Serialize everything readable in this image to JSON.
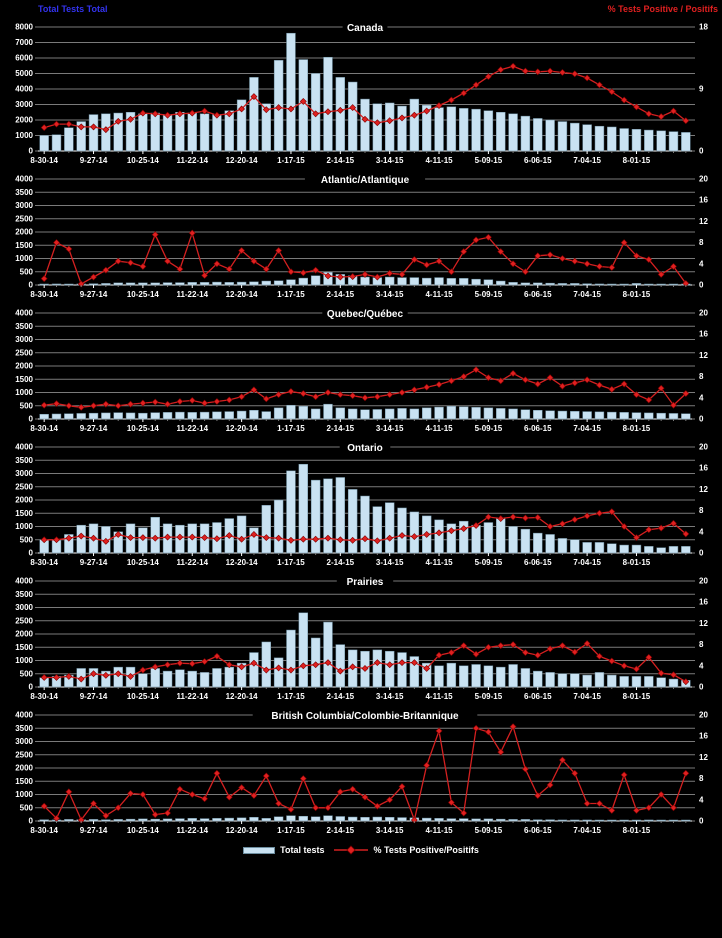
{
  "header": {
    "left_label": "Total Tests Total",
    "right_label": "% Tests Positive / Positifs"
  },
  "legend": {
    "bar_label": "Total tests",
    "line_label": "% Tests Positive/Positifs"
  },
  "colors": {
    "background": "#000000",
    "bar_fill": "#c9e2f2",
    "bar_stroke": "#6d8ea0",
    "line_color": "#d42020",
    "marker_fill": "#e02020",
    "marker_stroke": "#7a0000",
    "grid": "#7a7a7a",
    "axis_zero_line": "#ffffff",
    "left_header_color": "#3333ee",
    "right_header_color": "#e02020",
    "text": "#ffffff"
  },
  "chart_data": [
    {
      "type": "bar+line",
      "title": "Canada",
      "x_tick_labels": [
        "8-30-14",
        "9-27-14",
        "10-25-14",
        "11-22-14",
        "12-20-14",
        "1-17-15",
        "2-14-15",
        "3-14-15",
        "4-11-15",
        "5-09-15",
        "6-06-15",
        "7-04-15",
        "8-01-15"
      ],
      "weeks": 53,
      "left_axis": {
        "label": "Total tests",
        "min": 0,
        "max": 8000,
        "step": 1000
      },
      "right_axis": {
        "label": "% tests positive",
        "min": 0,
        "max": 18,
        "labels": [
          18,
          9,
          0
        ]
      },
      "bar_series": {
        "name": "Total tests",
        "axis": "left",
        "values": [
          1000,
          1050,
          1500,
          1900,
          2350,
          2400,
          2450,
          2500,
          2400,
          2450,
          2350,
          2500,
          2450,
          2400,
          2350,
          2600,
          3300,
          4750,
          3050,
          5850,
          7600,
          5900,
          5000,
          6050,
          4750,
          4450,
          3350,
          3050,
          3100,
          2900,
          3350,
          2950,
          2800,
          2850,
          2750,
          2700,
          2600,
          2500,
          2400,
          2250,
          2100,
          2000,
          1900,
          1800,
          1700,
          1600,
          1550,
          1450,
          1400,
          1350,
          1300,
          1250,
          1200
        ]
      },
      "line_series": {
        "name": "% Tests Positive/Positifs",
        "axis": "right",
        "values": [
          3.4,
          3.9,
          3.9,
          3.5,
          3.5,
          3.1,
          4.3,
          4.6,
          5.5,
          5.4,
          5.2,
          5.4,
          5.5,
          5.8,
          5.2,
          5.4,
          6.1,
          7.9,
          6.0,
          6.3,
          6.1,
          7.2,
          5.4,
          5.7,
          5.9,
          6.3,
          4.6,
          4.1,
          4.4,
          4.8,
          5.2,
          5.8,
          6.6,
          7.4,
          8.4,
          9.6,
          10.8,
          11.8,
          12.3,
          11.6,
          11.5,
          11.6,
          11.4,
          11.2,
          10.6,
          9.6,
          8.6,
          7.4,
          6.4,
          5.4,
          5.0,
          5.8,
          4.4
        ]
      }
    },
    {
      "type": "bar+line",
      "title": "Atlantic/Atlantique",
      "x_tick_labels": [
        "8-30-14",
        "9-27-14",
        "10-25-14",
        "11-22-14",
        "12-20-14",
        "1-17-15",
        "2-14-15",
        "3-14-15",
        "4-11-15",
        "5-09-15",
        "6-06-15",
        "7-04-15",
        "8-01-15"
      ],
      "weeks": 53,
      "left_axis": {
        "label": "Total tests",
        "min": 0,
        "max": 4000,
        "step": 500
      },
      "right_axis": {
        "label": "% tests positive",
        "min": 0,
        "max": 20,
        "labels": [
          20,
          16,
          12,
          8,
          4,
          0
        ]
      },
      "bar_series": {
        "name": "Total tests",
        "axis": "left",
        "values": [
          30,
          40,
          30,
          40,
          50,
          60,
          80,
          80,
          80,
          80,
          90,
          90,
          100,
          100,
          110,
          100,
          110,
          120,
          150,
          160,
          200,
          260,
          350,
          480,
          400,
          350,
          300,
          280,
          300,
          280,
          280,
          260,
          280,
          250,
          250,
          220,
          200,
          150,
          100,
          80,
          80,
          70,
          60,
          60,
          50,
          40,
          30,
          30,
          60,
          30,
          30,
          30,
          20
        ]
      },
      "line_series": {
        "name": "% Tests Positive/Positifs",
        "axis": "right",
        "values": [
          1.2,
          8.0,
          6.8,
          0.2,
          1.5,
          2.8,
          4.5,
          4.2,
          3.5,
          9.5,
          4.5,
          3.0,
          9.8,
          1.8,
          4.0,
          3.0,
          6.5,
          4.5,
          3.0,
          6.5,
          2.5,
          2.3,
          2.8,
          1.7,
          1.5,
          1.6,
          2.0,
          1.5,
          2.2,
          2.0,
          4.8,
          3.8,
          4.5,
          2.5,
          6.3,
          8.5,
          9.0,
          6.3,
          4.0,
          2.5,
          5.5,
          5.7,
          5.0,
          4.5,
          4.0,
          3.5,
          3.3,
          8.0,
          5.5,
          4.8,
          2.0,
          3.5,
          0.3
        ]
      }
    },
    {
      "type": "bar+line",
      "title": "Quebec/Québec",
      "x_tick_labels": [
        "8-30-14",
        "9-27-14",
        "10-25-14",
        "11-22-14",
        "12-20-14",
        "1-17-15",
        "2-14-15",
        "3-14-15",
        "4-11-15",
        "5-09-15",
        "6-06-15",
        "7-04-15",
        "8-01-15"
      ],
      "weeks": 53,
      "left_axis": {
        "label": "Total tests",
        "min": 0,
        "max": 4000,
        "step": 500
      },
      "right_axis": {
        "label": "% tests positive",
        "min": 0,
        "max": 20,
        "labels": [
          20,
          16,
          12,
          8,
          4,
          0
        ]
      },
      "bar_series": {
        "name": "Total tests",
        "axis": "left",
        "values": [
          180,
          190,
          200,
          210,
          220,
          230,
          240,
          230,
          220,
          240,
          250,
          260,
          250,
          260,
          270,
          280,
          300,
          330,
          280,
          420,
          520,
          480,
          380,
          560,
          420,
          380,
          350,
          360,
          380,
          400,
          380,
          420,
          450,
          480,
          460,
          440,
          420,
          400,
          380,
          350,
          330,
          310,
          300,
          290,
          280,
          270,
          260,
          250,
          240,
          230,
          220,
          210,
          200
        ]
      },
      "line_series": {
        "name": "% Tests Positive/Positifs",
        "axis": "right",
        "values": [
          2.6,
          2.9,
          2.5,
          2.2,
          2.5,
          2.8,
          2.5,
          2.8,
          3.0,
          3.2,
          2.8,
          3.3,
          3.5,
          3.0,
          3.3,
          3.6,
          4.2,
          5.5,
          3.8,
          4.6,
          5.2,
          4.8,
          4.2,
          5.0,
          4.6,
          4.4,
          4.0,
          4.2,
          4.6,
          5.0,
          5.5,
          6.0,
          6.5,
          7.2,
          8.0,
          9.3,
          7.8,
          7.2,
          8.6,
          7.4,
          6.6,
          7.8,
          6.2,
          6.8,
          7.4,
          6.4,
          5.6,
          6.6,
          4.6,
          3.6,
          5.8,
          2.6,
          4.8
        ]
      }
    },
    {
      "type": "bar+line",
      "title": "Ontario",
      "x_tick_labels": [
        "8-30-14",
        "9-27-14",
        "10-25-14",
        "11-22-14",
        "12-20-14",
        "1-17-15",
        "2-14-15",
        "3-14-15",
        "4-11-15",
        "5-09-15",
        "6-06-15",
        "7-04-15",
        "8-01-15"
      ],
      "weeks": 53,
      "left_axis": {
        "label": "Total tests",
        "min": 0,
        "max": 4000,
        "step": 500
      },
      "right_axis": {
        "label": "% tests positive",
        "min": 0,
        "max": 20,
        "labels": [
          20,
          16,
          12,
          8,
          4,
          0
        ]
      },
      "bar_series": {
        "name": "Total tests",
        "axis": "left",
        "values": [
          500,
          480,
          700,
          1050,
          1100,
          1000,
          800,
          1100,
          950,
          1350,
          1100,
          1050,
          1100,
          1100,
          1150,
          1300,
          1400,
          950,
          1800,
          2000,
          3100,
          3350,
          2750,
          2800,
          2850,
          2400,
          2150,
          1750,
          1900,
          1700,
          1550,
          1400,
          1250,
          1100,
          1200,
          1050,
          1150,
          1300,
          1000,
          900,
          750,
          700,
          550,
          500,
          400,
          400,
          350,
          300,
          300,
          250,
          200,
          250,
          250
        ]
      },
      "line_series": {
        "name": "% Tests Positive/Positifs",
        "axis": "right",
        "values": [
          2.5,
          2.5,
          2.8,
          3.2,
          2.8,
          2.2,
          3.5,
          2.9,
          2.9,
          2.8,
          3.0,
          3.0,
          3.0,
          2.9,
          2.7,
          3.3,
          2.6,
          3.5,
          2.9,
          2.8,
          2.4,
          2.6,
          2.6,
          2.8,
          2.5,
          2.4,
          2.7,
          2.3,
          2.8,
          3.3,
          3.1,
          3.5,
          3.8,
          4.2,
          4.6,
          5.2,
          6.8,
          6.5,
          6.8,
          6.6,
          6.7,
          5.0,
          5.5,
          6.3,
          7.0,
          7.5,
          7.8,
          5.0,
          2.9,
          4.4,
          4.7,
          5.6,
          3.6
        ]
      }
    },
    {
      "type": "bar+line",
      "title": "Prairies",
      "x_tick_labels": [
        "8-30-14",
        "9-27-14",
        "10-25-14",
        "11-22-14",
        "12-20-14",
        "1-17-15",
        "2-14-15",
        "3-14-15",
        "4-11-15",
        "5-09-15",
        "6-06-15",
        "7-04-15",
        "8-01-15"
      ],
      "weeks": 53,
      "left_axis": {
        "label": "Total tests",
        "min": 0,
        "max": 4000,
        "step": 500
      },
      "right_axis": {
        "label": "% tests positive",
        "min": 0,
        "max": 20,
        "labels": [
          20,
          16,
          12,
          8,
          4,
          0
        ]
      },
      "bar_series": {
        "name": "Total tests",
        "axis": "left",
        "values": [
          350,
          400,
          450,
          700,
          700,
          600,
          750,
          750,
          500,
          700,
          600,
          650,
          600,
          550,
          700,
          750,
          900,
          1300,
          1700,
          1100,
          2150,
          2800,
          1850,
          2450,
          1600,
          1400,
          1350,
          1400,
          1350,
          1300,
          1150,
          900,
          800,
          900,
          800,
          850,
          800,
          750,
          850,
          700,
          600,
          550,
          500,
          500,
          450,
          550,
          450,
          400,
          400,
          400,
          350,
          300,
          250
        ]
      },
      "line_series": {
        "name": "% Tests Positive/Positifs",
        "axis": "right",
        "values": [
          1.8,
          1.8,
          2.0,
          1.5,
          2.5,
          2.2,
          2.5,
          2.0,
          3.2,
          3.8,
          4.2,
          4.5,
          4.4,
          4.8,
          5.8,
          4.2,
          3.8,
          4.5,
          3.2,
          3.6,
          3.2,
          4.0,
          4.2,
          4.6,
          3.0,
          3.8,
          3.5,
          4.6,
          4.2,
          4.6,
          4.6,
          3.5,
          6.0,
          6.5,
          7.8,
          6.2,
          7.5,
          7.8,
          8.0,
          6.5,
          6.0,
          7.2,
          7.8,
          6.6,
          8.2,
          5.8,
          4.9,
          4.0,
          3.4,
          5.6,
          2.6,
          2.3,
          1.0
        ]
      }
    },
    {
      "type": "bar+line",
      "title": "British Columbia/Colombie-Britannique",
      "x_tick_labels": [
        "8-30-14",
        "9-27-14",
        "10-25-14",
        "11-22-14",
        "12-20-14",
        "1-17-15",
        "2-14-15",
        "3-14-15",
        "4-11-15",
        "5-09-15",
        "6-06-15",
        "7-04-15",
        "8-01-15"
      ],
      "weeks": 53,
      "left_axis": {
        "label": "Total tests",
        "min": 0,
        "max": 4000,
        "step": 500
      },
      "right_axis": {
        "label": "% tests positive",
        "min": 0,
        "max": 20,
        "labels": [
          20,
          16,
          12,
          8,
          4,
          0
        ]
      },
      "bar_series": {
        "name": "Total tests",
        "axis": "left",
        "values": [
          50,
          40,
          60,
          50,
          60,
          50,
          60,
          70,
          80,
          70,
          80,
          90,
          100,
          90,
          100,
          110,
          120,
          140,
          100,
          160,
          200,
          180,
          160,
          200,
          170,
          150,
          140,
          150,
          140,
          130,
          120,
          110,
          100,
          90,
          90,
          80,
          80,
          70,
          60,
          60,
          50,
          50,
          40,
          40,
          40,
          30,
          30,
          30,
          30,
          40,
          30,
          30,
          30
        ]
      },
      "line_series": {
        "name": "% Tests Positive/Positifs",
        "axis": "right",
        "values": [
          2.8,
          0.5,
          5.5,
          0.2,
          3.3,
          1.0,
          2.5,
          5.2,
          5.0,
          1.2,
          1.5,
          6.0,
          5.0,
          4.2,
          9.0,
          4.5,
          6.3,
          4.8,
          8.5,
          3.3,
          2.2,
          8.0,
          2.5,
          2.5,
          5.5,
          6.0,
          4.5,
          2.8,
          4.0,
          6.5,
          0.2,
          10.5,
          17.0,
          3.5,
          1.5,
          17.5,
          16.8,
          13.0,
          17.8,
          9.8,
          4.8,
          6.8,
          11.5,
          9.0,
          3.3,
          3.3,
          2.0,
          8.7,
          2.0,
          2.5,
          5.0,
          2.5,
          9.0
        ]
      }
    }
  ]
}
